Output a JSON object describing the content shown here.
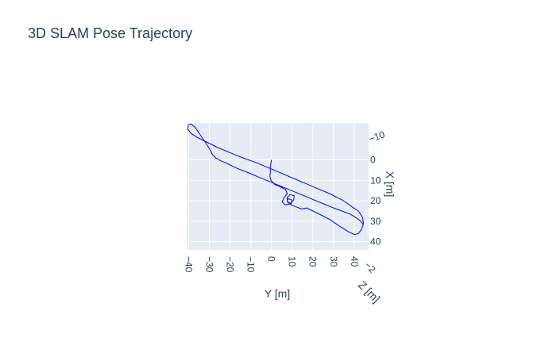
{
  "chart_data": {
    "type": "line",
    "title": "3D SLAM Pose Trajectory",
    "xlabel": "Y [m]",
    "ylabel": "X [m]",
    "zlabel": "Z [m]",
    "xlim": [
      -41,
      47
    ],
    "ylim": [
      -18,
      44
    ],
    "x_ticks": [
      -40,
      -30,
      -20,
      -10,
      0,
      10,
      20,
      30,
      40
    ],
    "x_tick_labels": [
      "−40",
      "−30",
      "−20",
      "−10",
      "0",
      "10",
      "20",
      "30",
      "40"
    ],
    "y_ticks": [
      0,
      10,
      20,
      30,
      40
    ],
    "y_tick_labels": [
      "0",
      "10",
      "20",
      "30",
      "40"
    ],
    "side_ticks": [
      -10,
      0,
      10,
      20,
      30,
      40
    ],
    "side_tick_labels": [
      "−10",
      "0",
      "10",
      "20",
      "30",
      "40"
    ],
    "z_tick_label": "−2",
    "grid": true,
    "line_color": "#0000ff",
    "series": [
      {
        "x": [
          0.0,
          -0.3,
          -0.6,
          -0.5,
          -0.8,
          -0.2,
          1.5,
          4.0,
          6.8,
          7.6,
          6.0,
          5.2,
          6.5,
          9.0,
          10.8,
          11.0,
          9.0,
          7.5,
          7.8,
          9.5,
          9.8,
          8.0,
          7.6,
          9.5,
          12.0,
          14.5,
          17.0,
          22.0,
          28.0,
          33.0,
          37.0,
          40.0,
          42.0,
          43.5,
          44.5,
          44.0,
          42.0,
          39.0,
          37.0,
          34.0,
          28.0,
          21.0,
          14.0,
          7.0,
          0.0,
          -7.0,
          -14.0,
          -20.0,
          -26.0,
          -31.0,
          -36.0,
          -39.0,
          -40.5,
          -40.2,
          -39.0,
          -37.0,
          -35.0,
          -33.0,
          -31.0,
          -29.5,
          -28.5,
          -27.0,
          -24.5,
          -22.0,
          -17.0,
          -12.0,
          -6.0,
          0.0,
          6.0,
          12.0,
          18.0,
          24.0,
          30.0,
          34.0,
          38.0,
          40.5,
          42.5,
          44.0,
          44.5
        ],
        "y": [
          0.0,
          2.0,
          4.0,
          6.0,
          8.0,
          10.0,
          12.0,
          13.0,
          14.5,
          16.5,
          18.5,
          20.5,
          22.0,
          21.5,
          19.5,
          17.5,
          17.0,
          18.5,
          20.5,
          21.5,
          19.5,
          19.0,
          20.5,
          22.0,
          23.0,
          24.0,
          23.5,
          26.0,
          29.0,
          32.5,
          35.0,
          36.5,
          36.0,
          34.0,
          31.0,
          28.0,
          25.0,
          23.0,
          21.5,
          19.5,
          16.5,
          13.5,
          10.5,
          7.5,
          4.5,
          1.5,
          -1.0,
          -3.5,
          -6.0,
          -8.5,
          -11.0,
          -13.0,
          -15.0,
          -17.0,
          -17.5,
          -16.0,
          -13.0,
          -10.0,
          -7.0,
          -4.5,
          -2.5,
          -1.0,
          0.5,
          1.5,
          4.0,
          6.0,
          8.5,
          11.0,
          13.5,
          16.0,
          18.5,
          21.0,
          23.5,
          25.0,
          26.5,
          28.0,
          29.5,
          31.0,
          32.0
        ]
      }
    ]
  }
}
